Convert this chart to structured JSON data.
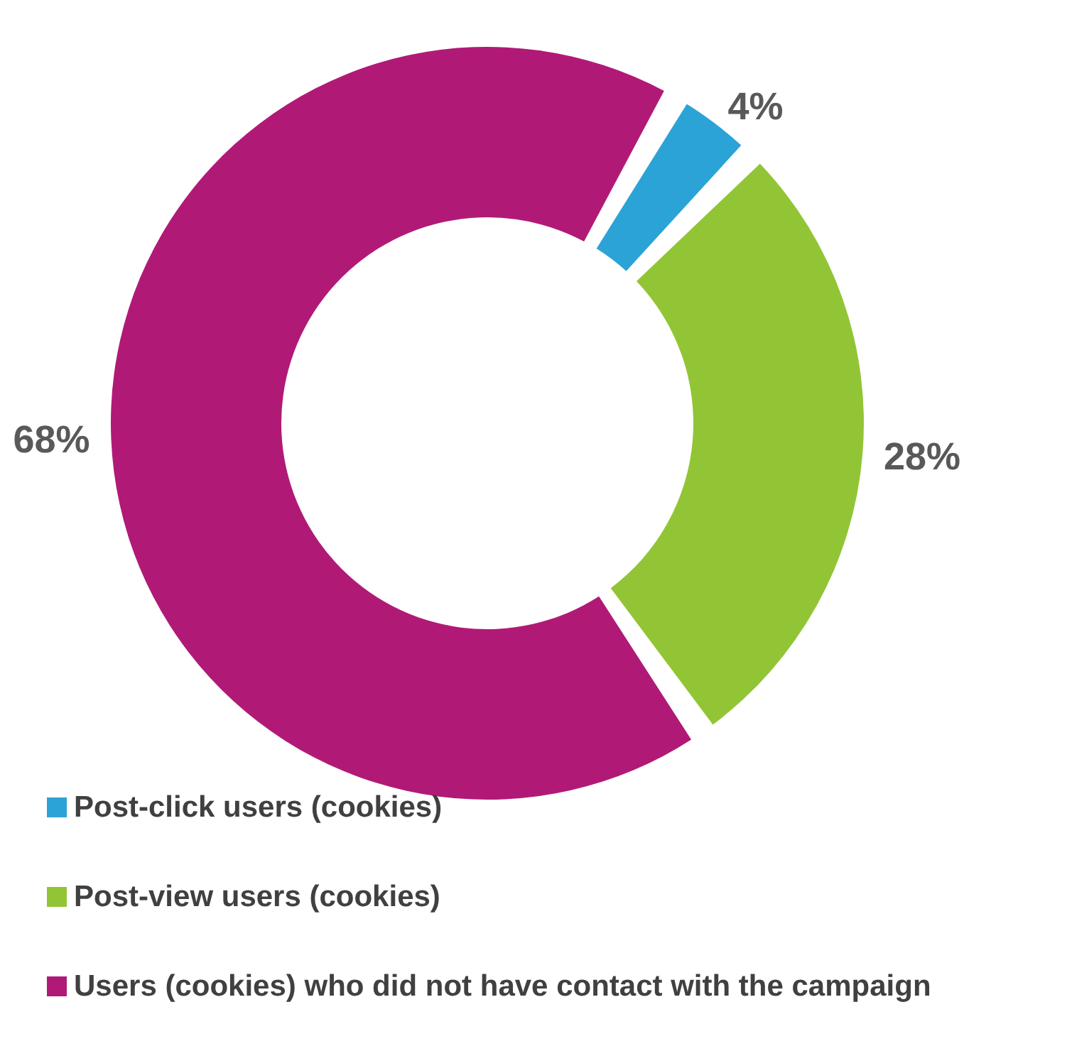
{
  "chart_data": {
    "type": "donut",
    "categories": [
      "Post-click users (cookies)",
      "Post-view users (cookies)",
      "Users (cookies) who did not have contact with the campaign"
    ],
    "values": [
      4,
      28,
      68
    ],
    "colors": [
      "#2ca3d6",
      "#92c535",
      "#b01a76"
    ],
    "value_labels": [
      "4%",
      "28%",
      "68%"
    ],
    "legend": "bottom"
  }
}
